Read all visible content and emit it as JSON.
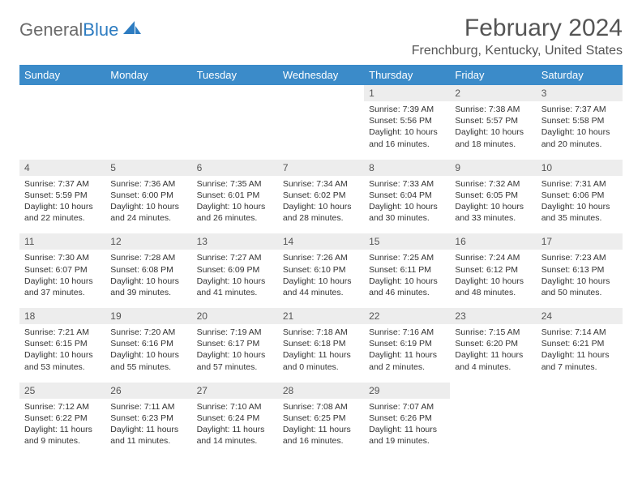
{
  "logo": {
    "text_gray": "General",
    "text_blue": "Blue",
    "shape_color": "#2d7cc1"
  },
  "title": "February 2024",
  "location": "Frenchburg, Kentucky, United States",
  "colors": {
    "header_bg": "#3b8bc9",
    "header_text": "#ffffff",
    "daynum_bg": "#ededed",
    "text": "#333333",
    "rule": "#3b6f9a"
  },
  "days_of_week": [
    "Sunday",
    "Monday",
    "Tuesday",
    "Wednesday",
    "Thursday",
    "Friday",
    "Saturday"
  ],
  "weeks": [
    [
      null,
      null,
      null,
      null,
      {
        "n": "1",
        "sr": "7:39 AM",
        "ss": "5:56 PM",
        "dl": "10 hours and 16 minutes."
      },
      {
        "n": "2",
        "sr": "7:38 AM",
        "ss": "5:57 PM",
        "dl": "10 hours and 18 minutes."
      },
      {
        "n": "3",
        "sr": "7:37 AM",
        "ss": "5:58 PM",
        "dl": "10 hours and 20 minutes."
      }
    ],
    [
      {
        "n": "4",
        "sr": "7:37 AM",
        "ss": "5:59 PM",
        "dl": "10 hours and 22 minutes."
      },
      {
        "n": "5",
        "sr": "7:36 AM",
        "ss": "6:00 PM",
        "dl": "10 hours and 24 minutes."
      },
      {
        "n": "6",
        "sr": "7:35 AM",
        "ss": "6:01 PM",
        "dl": "10 hours and 26 minutes."
      },
      {
        "n": "7",
        "sr": "7:34 AM",
        "ss": "6:02 PM",
        "dl": "10 hours and 28 minutes."
      },
      {
        "n": "8",
        "sr": "7:33 AM",
        "ss": "6:04 PM",
        "dl": "10 hours and 30 minutes."
      },
      {
        "n": "9",
        "sr": "7:32 AM",
        "ss": "6:05 PM",
        "dl": "10 hours and 33 minutes."
      },
      {
        "n": "10",
        "sr": "7:31 AM",
        "ss": "6:06 PM",
        "dl": "10 hours and 35 minutes."
      }
    ],
    [
      {
        "n": "11",
        "sr": "7:30 AM",
        "ss": "6:07 PM",
        "dl": "10 hours and 37 minutes."
      },
      {
        "n": "12",
        "sr": "7:28 AM",
        "ss": "6:08 PM",
        "dl": "10 hours and 39 minutes."
      },
      {
        "n": "13",
        "sr": "7:27 AM",
        "ss": "6:09 PM",
        "dl": "10 hours and 41 minutes."
      },
      {
        "n": "14",
        "sr": "7:26 AM",
        "ss": "6:10 PM",
        "dl": "10 hours and 44 minutes."
      },
      {
        "n": "15",
        "sr": "7:25 AM",
        "ss": "6:11 PM",
        "dl": "10 hours and 46 minutes."
      },
      {
        "n": "16",
        "sr": "7:24 AM",
        "ss": "6:12 PM",
        "dl": "10 hours and 48 minutes."
      },
      {
        "n": "17",
        "sr": "7:23 AM",
        "ss": "6:13 PM",
        "dl": "10 hours and 50 minutes."
      }
    ],
    [
      {
        "n": "18",
        "sr": "7:21 AM",
        "ss": "6:15 PM",
        "dl": "10 hours and 53 minutes."
      },
      {
        "n": "19",
        "sr": "7:20 AM",
        "ss": "6:16 PM",
        "dl": "10 hours and 55 minutes."
      },
      {
        "n": "20",
        "sr": "7:19 AM",
        "ss": "6:17 PM",
        "dl": "10 hours and 57 minutes."
      },
      {
        "n": "21",
        "sr": "7:18 AM",
        "ss": "6:18 PM",
        "dl": "11 hours and 0 minutes."
      },
      {
        "n": "22",
        "sr": "7:16 AM",
        "ss": "6:19 PM",
        "dl": "11 hours and 2 minutes."
      },
      {
        "n": "23",
        "sr": "7:15 AM",
        "ss": "6:20 PM",
        "dl": "11 hours and 4 minutes."
      },
      {
        "n": "24",
        "sr": "7:14 AM",
        "ss": "6:21 PM",
        "dl": "11 hours and 7 minutes."
      }
    ],
    [
      {
        "n": "25",
        "sr": "7:12 AM",
        "ss": "6:22 PM",
        "dl": "11 hours and 9 minutes."
      },
      {
        "n": "26",
        "sr": "7:11 AM",
        "ss": "6:23 PM",
        "dl": "11 hours and 11 minutes."
      },
      {
        "n": "27",
        "sr": "7:10 AM",
        "ss": "6:24 PM",
        "dl": "11 hours and 14 minutes."
      },
      {
        "n": "28",
        "sr": "7:08 AM",
        "ss": "6:25 PM",
        "dl": "11 hours and 16 minutes."
      },
      {
        "n": "29",
        "sr": "7:07 AM",
        "ss": "6:26 PM",
        "dl": "11 hours and 19 minutes."
      },
      null,
      null
    ]
  ],
  "labels": {
    "sunrise": "Sunrise: ",
    "sunset": "Sunset: ",
    "daylight": "Daylight: "
  }
}
